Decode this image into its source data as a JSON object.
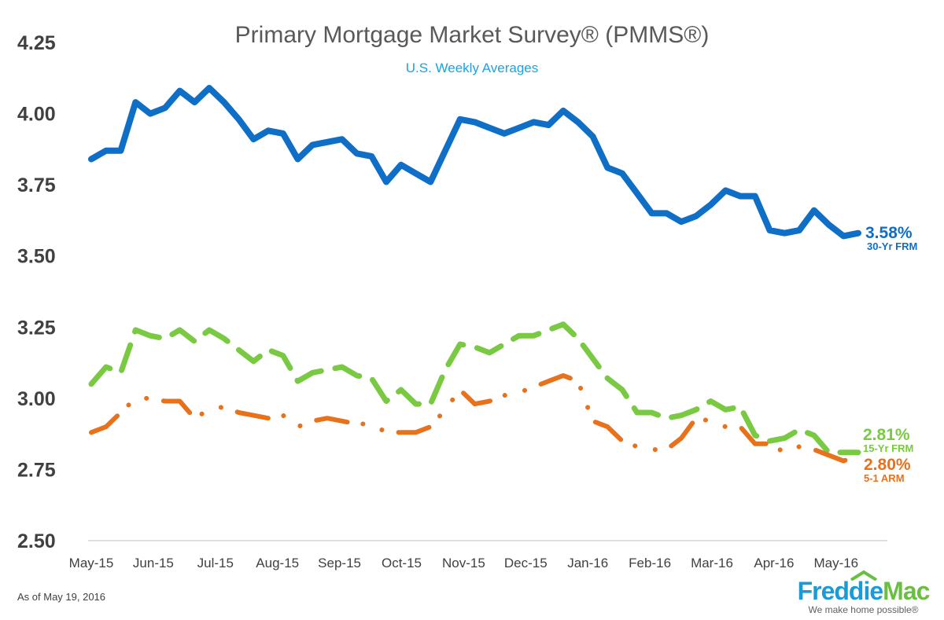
{
  "title": "Primary Mortgage Market Survey® (PMMS®)",
  "subtitle": "U.S. Weekly Averages",
  "footnote": "As of May 19, 2016",
  "logo": {
    "name_part1": "Freddie",
    "name_part2": "Mac",
    "tagline": "We make home possible®"
  },
  "colors": {
    "frm30": "#0f6fc6",
    "frm15": "#7ac943",
    "arm": "#e8711c"
  },
  "chart_data": {
    "type": "line",
    "title": "Primary Mortgage Market Survey® (PMMS®)",
    "subtitle": "U.S. Weekly Averages",
    "xlabel": "",
    "ylabel": "",
    "ylim": [
      2.5,
      4.25
    ],
    "yticks": [
      "2.50",
      "2.75",
      "3.00",
      "3.25",
      "3.50",
      "3.75",
      "4.00",
      "4.25"
    ],
    "ytick_values": [
      2.5,
      2.75,
      3.0,
      3.25,
      3.5,
      3.75,
      4.0,
      4.25
    ],
    "xtick_labels": [
      "May-15",
      "Jun-15",
      "Jul-15",
      "Aug-15",
      "Sep-15",
      "Oct-15",
      "Nov-15",
      "Dec-15",
      "Jan-16",
      "Feb-16",
      "Mar-16",
      "Apr-16",
      "May-16"
    ],
    "grid": false,
    "series": [
      {
        "name": "30-Yr FRM",
        "end_label": "3.58%",
        "style": "solid",
        "values": [
          3.84,
          3.87,
          3.87,
          4.04,
          4.0,
          4.02,
          4.08,
          4.04,
          4.09,
          4.04,
          3.98,
          3.91,
          3.94,
          3.93,
          3.84,
          3.89,
          3.9,
          3.91,
          3.86,
          3.85,
          3.76,
          3.82,
          3.79,
          3.76,
          3.87,
          3.98,
          3.97,
          3.95,
          3.93,
          3.95,
          3.97,
          3.96,
          4.01,
          3.97,
          3.92,
          3.81,
          3.79,
          3.72,
          3.65,
          3.65,
          3.62,
          3.64,
          3.68,
          3.73,
          3.71,
          3.71,
          3.59,
          3.58,
          3.59,
          3.66,
          3.61,
          3.57,
          3.58
        ]
      },
      {
        "name": "15-Yr FRM",
        "end_label": "2.81%",
        "style": "dashed",
        "values": [
          3.05,
          3.11,
          3.09,
          3.24,
          3.22,
          3.21,
          3.24,
          3.2,
          3.24,
          3.21,
          3.17,
          3.13,
          3.17,
          3.15,
          3.06,
          3.09,
          3.1,
          3.11,
          3.08,
          3.07,
          2.99,
          3.03,
          2.98,
          2.98,
          3.1,
          3.19,
          3.18,
          3.16,
          3.19,
          3.22,
          3.22,
          3.24,
          3.26,
          3.21,
          3.14,
          3.07,
          3.03,
          2.95,
          2.95,
          2.93,
          2.94,
          2.96,
          2.99,
          2.96,
          2.97,
          2.87,
          2.85,
          2.86,
          2.89,
          2.87,
          2.81,
          2.81,
          2.81
        ]
      },
      {
        "name": "5-1 ARM",
        "end_label": "2.80%",
        "style": "dash-dot",
        "values": [
          2.88,
          2.9,
          2.95,
          3.0,
          3.0,
          2.99,
          2.99,
          2.93,
          2.96,
          2.97,
          2.95,
          2.94,
          2.93,
          2.94,
          2.9,
          2.92,
          2.93,
          2.92,
          2.91,
          2.91,
          2.88,
          2.88,
          2.88,
          2.9,
          2.96,
          3.03,
          2.98,
          2.99,
          3.01,
          3.02,
          3.04,
          3.06,
          3.08,
          3.06,
          2.92,
          2.9,
          2.85,
          2.83,
          2.82,
          2.82,
          2.86,
          2.93,
          2.92,
          2.9,
          2.9,
          2.84,
          2.84,
          2.81,
          2.83,
          2.82,
          2.8,
          2.78,
          2.8
        ]
      }
    ]
  }
}
